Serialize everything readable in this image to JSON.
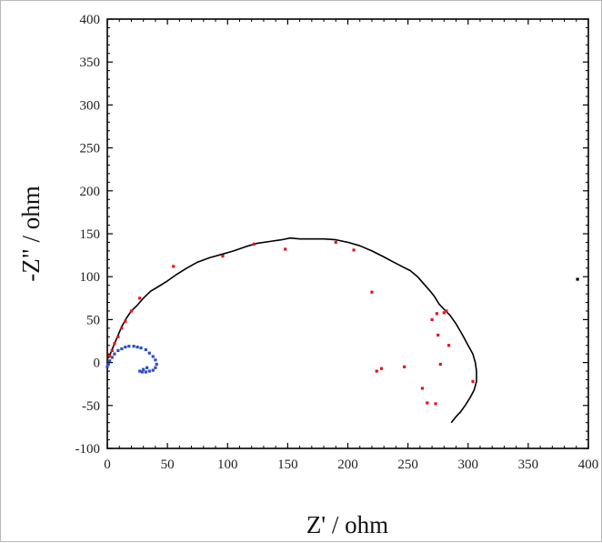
{
  "chart_data": {
    "type": "scatter",
    "title": "",
    "xlabel": "Z' / ohm",
    "ylabel": "-Z\" / ohm",
    "xlim": [
      0,
      400
    ],
    "ylim": [
      -100,
      400
    ],
    "xticks": [
      0,
      50,
      100,
      150,
      200,
      250,
      300,
      350,
      400
    ],
    "yticks": [
      -100,
      -50,
      0,
      50,
      100,
      150,
      200,
      250,
      300,
      350,
      400
    ],
    "grid": false,
    "legend": "none",
    "series": [
      {
        "style": "line",
        "color": "#000000",
        "x": [
          1,
          3,
          6,
          9,
          12,
          16,
          20,
          25,
          30,
          36,
          42,
          50,
          58,
          66,
          75,
          85,
          95,
          105,
          115,
          125,
          135,
          145,
          152,
          160,
          170,
          180,
          190,
          200,
          210,
          220,
          230,
          238,
          245,
          252,
          258,
          263,
          268,
          272,
          276,
          280,
          285,
          290,
          295,
          300,
          304,
          306,
          307,
          307,
          305,
          302,
          298,
          294,
          290,
          286
        ],
        "y": [
          5,
          12,
          22,
          32,
          42,
          52,
          60,
          67,
          75,
          83,
          88,
          95,
          103,
          110,
          117,
          122,
          126,
          130,
          135,
          139,
          141,
          143,
          145,
          144,
          144,
          144,
          143,
          140,
          136,
          130,
          123,
          117,
          112,
          107,
          100,
          92,
          84,
          77,
          68,
          62,
          55,
          45,
          33,
          20,
          10,
          0,
          -10,
          -22,
          -32,
          -40,
          -49,
          -57,
          -63,
          -70
        ]
      },
      {
        "style": "points",
        "color": "#e8141b",
        "x": [
          2,
          4,
          6,
          9,
          12,
          15,
          20,
          27,
          55,
          96,
          122,
          148,
          190,
          205,
          220,
          224,
          228,
          247,
          262,
          266,
          270,
          273,
          275,
          277,
          280,
          282,
          284,
          274,
          304
        ],
        "y": [
          8,
          14,
          22,
          30,
          40,
          48,
          60,
          75,
          112,
          124,
          138,
          132,
          140,
          131,
          82,
          -10,
          -7,
          -5,
          -30,
          -47,
          50,
          -48,
          32,
          -2,
          58,
          60,
          20,
          57,
          -22
        ]
      },
      {
        "style": "points",
        "color": "#2b4fc6",
        "x": [
          0,
          1,
          2,
          4,
          6,
          9,
          12,
          15,
          18,
          22,
          25,
          28,
          32,
          35,
          38,
          40,
          41,
          40,
          38,
          35,
          32,
          29,
          27,
          30,
          33
        ],
        "y": [
          -5,
          -2,
          2,
          6,
          10,
          14,
          16,
          18,
          19,
          19,
          18,
          17,
          15,
          11,
          7,
          3,
          -2,
          -6,
          -9,
          -10,
          -11,
          -11,
          -10,
          -8,
          -6
        ]
      },
      {
        "style": "points",
        "color": "#000000",
        "x": [
          391
        ],
        "y": [
          97
        ]
      }
    ]
  }
}
